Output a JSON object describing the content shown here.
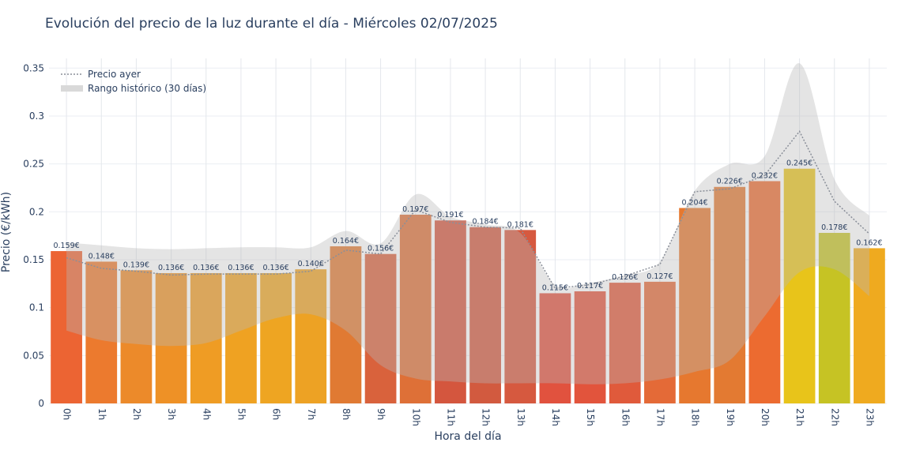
{
  "chart_data": {
    "type": "bar",
    "title": "Evolución del precio de la luz durante el día - Miércoles 02/07/2025",
    "xlabel": "Hora del día",
    "ylabel": "Precio (€/kWh)",
    "ylim": [
      0,
      0.37
    ],
    "yticks": [
      0,
      0.05,
      0.1,
      0.15,
      0.2,
      0.25,
      0.3,
      0.35
    ],
    "ytick_labels": [
      "0",
      "0.05",
      "0.1",
      "0.15",
      "0.2",
      "0.25",
      "0.3",
      "0.35"
    ],
    "categories": [
      "0h",
      "1h",
      "2h",
      "3h",
      "4h",
      "5h",
      "6h",
      "7h",
      "8h",
      "9h",
      "10h",
      "11h",
      "12h",
      "13h",
      "14h",
      "15h",
      "16h",
      "17h",
      "18h",
      "19h",
      "20h",
      "21h",
      "22h",
      "23h"
    ],
    "series": [
      {
        "name": "",
        "type": "bar",
        "values": [
          0.159,
          0.148,
          0.139,
          0.136,
          0.136,
          0.136,
          0.136,
          0.14,
          0.164,
          0.156,
          0.197,
          0.191,
          0.184,
          0.181,
          0.115,
          0.117,
          0.126,
          0.127,
          0.204,
          0.226,
          0.232,
          0.245,
          0.178,
          0.162
        ],
        "labels": [
          "0.159€",
          "0.148€",
          "0.139€",
          "0.136€",
          "0.136€",
          "0.136€",
          "0.136€",
          "0.140€",
          "0.164€",
          "0.156€",
          "0.197€",
          "0.191€",
          "0.184€",
          "0.181€",
          "0.115€",
          "0.117€",
          "0.126€",
          "0.127€",
          "0.204€",
          "0.226€",
          "0.232€",
          "0.245€",
          "0.178€",
          "0.162€"
        ],
        "colors": [
          "#ec6433",
          "#ec7a2e",
          "#ec8a2a",
          "#ee9126",
          "#ef9c24",
          "#efa222",
          "#eea522",
          "#eda224",
          "#e07a33",
          "#d9623c",
          "#de7037",
          "#d4563e",
          "#d25a3f",
          "#d6593f",
          "#e1523e",
          "#e2543c",
          "#e05a3b",
          "#e46a37",
          "#e6782f",
          "#e37a32",
          "#ec6b30",
          "#e8c41a",
          "#c6c324",
          "#efaa1f"
        ]
      },
      {
        "name": "Precio ayer",
        "type": "line",
        "style": "dotted",
        "color": "#8a8f99",
        "values": [
          0.152,
          0.141,
          0.138,
          0.134,
          0.135,
          0.135,
          0.135,
          0.138,
          0.16,
          0.156,
          0.202,
          0.189,
          0.184,
          0.183,
          0.12,
          0.124,
          0.133,
          0.145,
          0.221,
          0.224,
          0.238,
          0.284,
          0.211,
          0.177
        ]
      },
      {
        "name": "Rango histórico (30 días)",
        "type": "band",
        "color": "#d9d9d9",
        "upper": [
          0.168,
          0.165,
          0.162,
          0.161,
          0.162,
          0.163,
          0.163,
          0.163,
          0.18,
          0.167,
          0.218,
          0.195,
          0.187,
          0.178,
          0.124,
          0.126,
          0.134,
          0.148,
          0.222,
          0.25,
          0.258,
          0.355,
          0.234,
          0.196
        ],
        "lower": [
          0.076,
          0.066,
          0.062,
          0.06,
          0.063,
          0.076,
          0.089,
          0.093,
          0.076,
          0.04,
          0.026,
          0.023,
          0.021,
          0.021,
          0.021,
          0.02,
          0.021,
          0.025,
          0.033,
          0.045,
          0.091,
          0.137,
          0.14,
          0.112
        ]
      }
    ],
    "grid": true,
    "legend": {
      "position": "top-left",
      "entries": [
        "Precio ayer",
        "Rango histórico (30 días)"
      ]
    }
  }
}
